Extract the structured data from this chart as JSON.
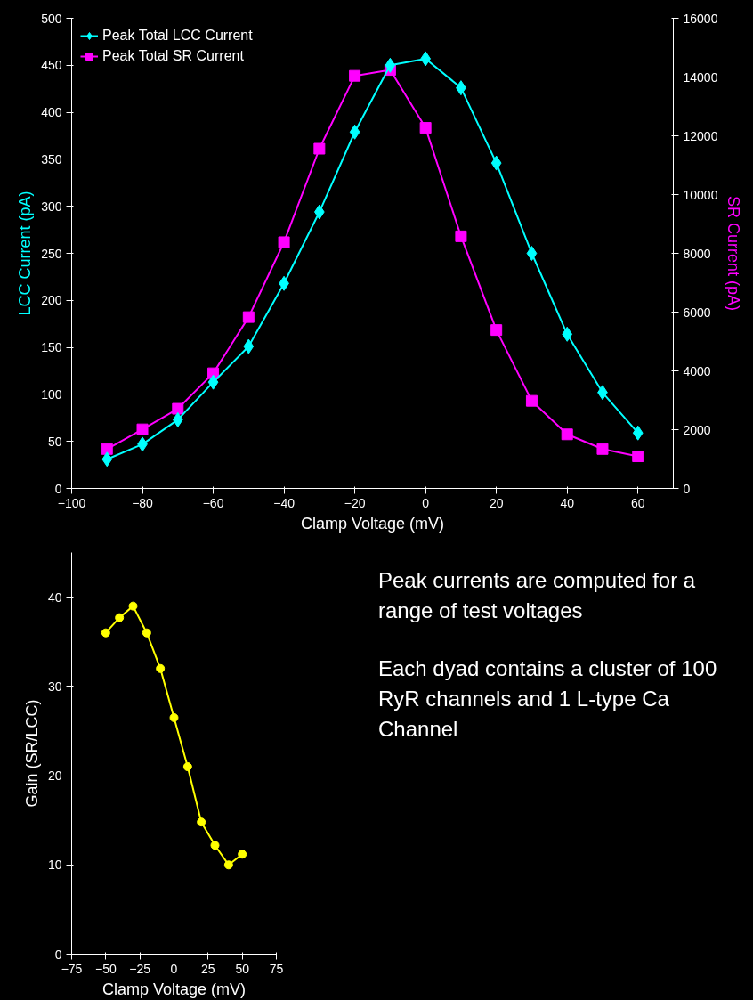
{
  "chart_data": [
    {
      "type": "line",
      "xlabel": "Clamp Voltage (mV)",
      "ylabel": "LCC Current (pA)",
      "y2label": "SR Current (pA)",
      "x": [
        -90,
        -80,
        -70,
        -60,
        -50,
        -40,
        -30,
        -20,
        -10,
        0,
        10,
        20,
        30,
        40,
        50,
        60
      ],
      "series": [
        {
          "name": "Peak Total LCC Current",
          "color": "#00ffff",
          "marker": "diamond",
          "values": [
            31,
            47,
            73,
            113,
            151,
            218,
            294,
            379,
            450,
            457,
            426,
            346,
            250,
            164,
            102,
            59
          ]
        },
        {
          "name": "Peak Total SR Current",
          "color": "#ff00ff",
          "marker": "square",
          "axis": "y2",
          "values": [
            1340,
            2010,
            2710,
            3920,
            5830,
            8380,
            11560,
            14040,
            14240,
            12270,
            8580,
            5390,
            2980,
            1840,
            1340,
            1090
          ]
        }
      ],
      "xlim": [
        -100,
        70
      ],
      "xticks": [
        -100,
        -80,
        -60,
        -40,
        -20,
        0,
        20,
        40,
        60
      ],
      "ylim": [
        0,
        500
      ],
      "yticks": [
        0,
        50,
        100,
        150,
        200,
        250,
        300,
        350,
        400,
        450,
        500
      ],
      "y2lim": [
        0,
        16000
      ],
      "y2ticks": [
        0,
        2000,
        4000,
        6000,
        8000,
        10000,
        12000,
        14000,
        16000
      ],
      "legend": "top left",
      "grid": false
    },
    {
      "type": "line",
      "xlabel": "Clamp Voltage (mV)",
      "ylabel": "Gain (SR/LCC)",
      "x": [
        -50,
        -40,
        -30,
        -20,
        -10,
        0,
        10,
        20,
        30,
        40,
        50
      ],
      "series": [
        {
          "color": "#ffff00",
          "marker": "circle",
          "values": [
            36,
            37.7,
            39,
            36,
            32,
            26.5,
            21,
            14.8,
            12.2,
            10,
            11.2
          ]
        }
      ],
      "xlim": [
        -75,
        75
      ],
      "xticks": [
        -75,
        -50,
        -25,
        0,
        25,
        50,
        75
      ],
      "ylim": [
        0,
        45
      ],
      "yticks": [
        0,
        10,
        20,
        30,
        40
      ],
      "grid": false
    },
    {
      "type": "other",
      "annotations": [
        "Peak currents are computed for a range of test voltages",
        "Each dyad contains a cluster of 100 RyR channels and 1 L-type Ca Channel"
      ]
    }
  ]
}
